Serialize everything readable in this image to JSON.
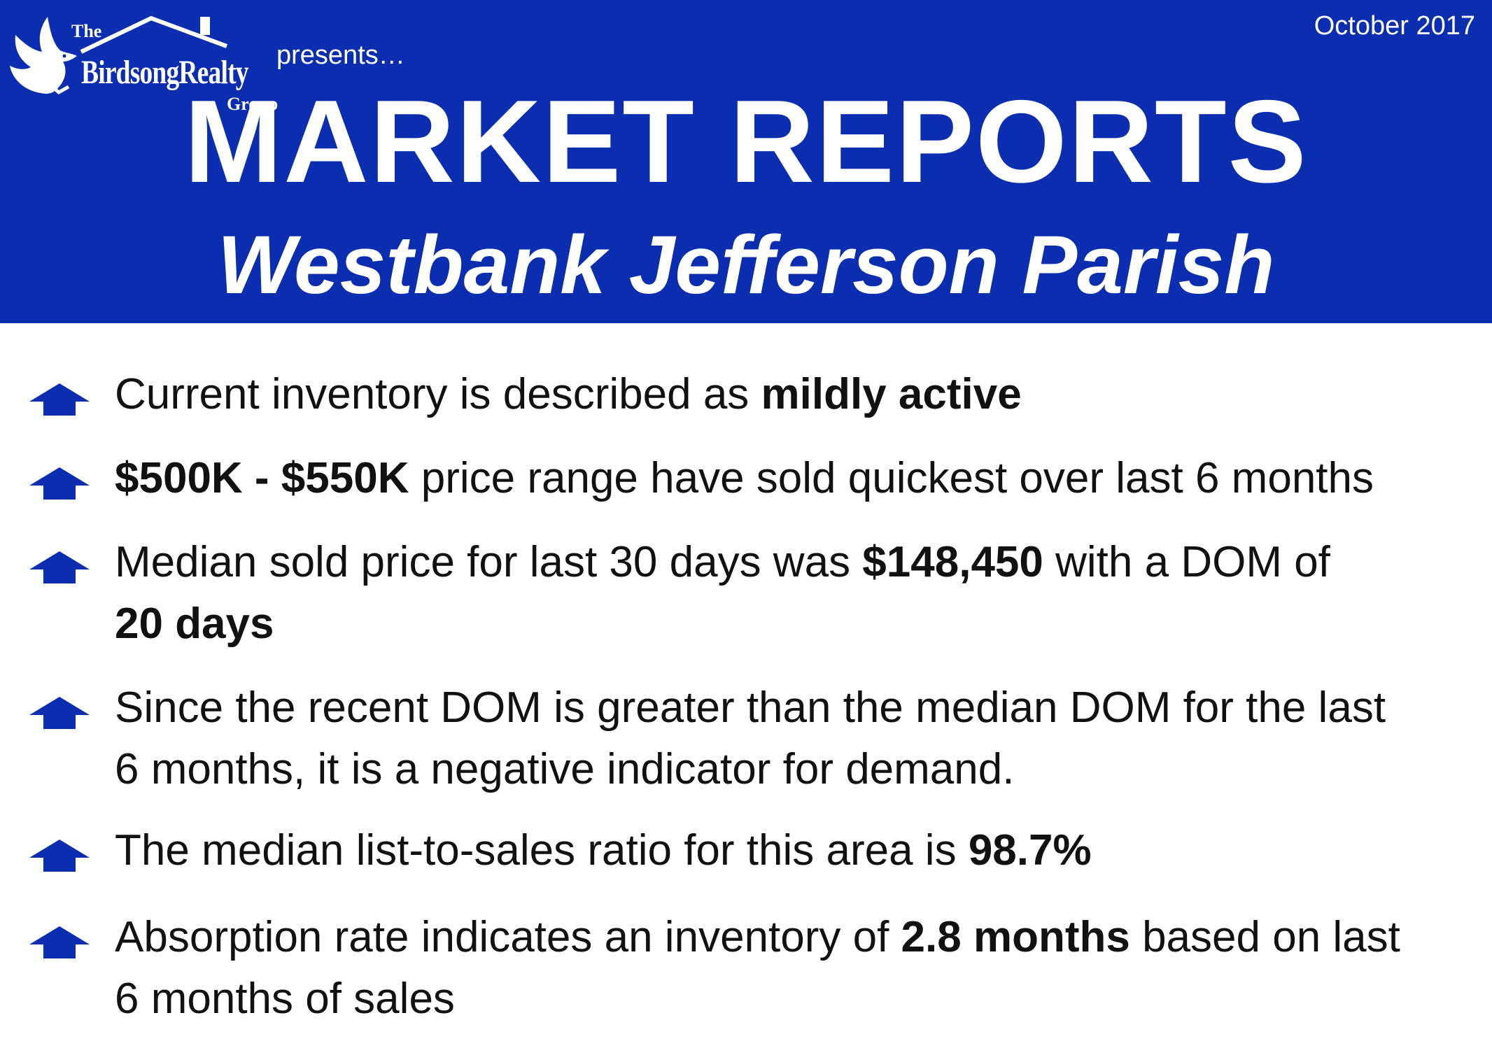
{
  "header": {
    "logo": {
      "the": "The",
      "name": "BirdsongRealty",
      "group": "Group"
    },
    "presents": "presents…",
    "date": "October 2017",
    "title": "MARKET REPORTS",
    "subtitle": "Westbank Jefferson Parish"
  },
  "colors": {
    "banner": "#0b2db0",
    "arrow": "#0b2db0",
    "text": "#111111"
  },
  "bullets": [
    {
      "icon": "up-arrow-icon",
      "parts": [
        {
          "t": "Current inventory is described as ",
          "bold": false
        },
        {
          "t": "mildly active",
          "bold": true
        }
      ]
    },
    {
      "icon": "up-arrow-icon",
      "parts": [
        {
          "t": "$500K - $550K",
          "bold": true
        },
        {
          "t": " price range have sold quickest over last 6 months",
          "bold": false
        }
      ]
    },
    {
      "icon": "up-arrow-icon",
      "parts": [
        {
          "t": "Median sold price for last 30 days was ",
          "bold": false
        },
        {
          "t": "$148,450",
          "bold": true
        },
        {
          "t": " with a DOM of ",
          "bold": false
        },
        {
          "t": "20 days",
          "bold": true
        }
      ]
    },
    {
      "icon": "up-arrow-icon",
      "parts": [
        {
          "t": "Since the recent DOM is greater than the median DOM for the last 6 months, it is a negative indicator for demand.",
          "bold": false
        }
      ]
    },
    {
      "icon": "up-arrow-icon",
      "parts": [
        {
          "t": "The median list-to-sales ratio for this area is ",
          "bold": false
        },
        {
          "t": "98.7%",
          "bold": true
        }
      ]
    },
    {
      "icon": "up-arrow-icon",
      "parts": [
        {
          "t": "Absorption rate indicates an inventory of ",
          "bold": false
        },
        {
          "t": "2.8 months",
          "bold": true
        },
        {
          "t": " based on last 6 months of sales",
          "bold": false
        }
      ]
    }
  ]
}
